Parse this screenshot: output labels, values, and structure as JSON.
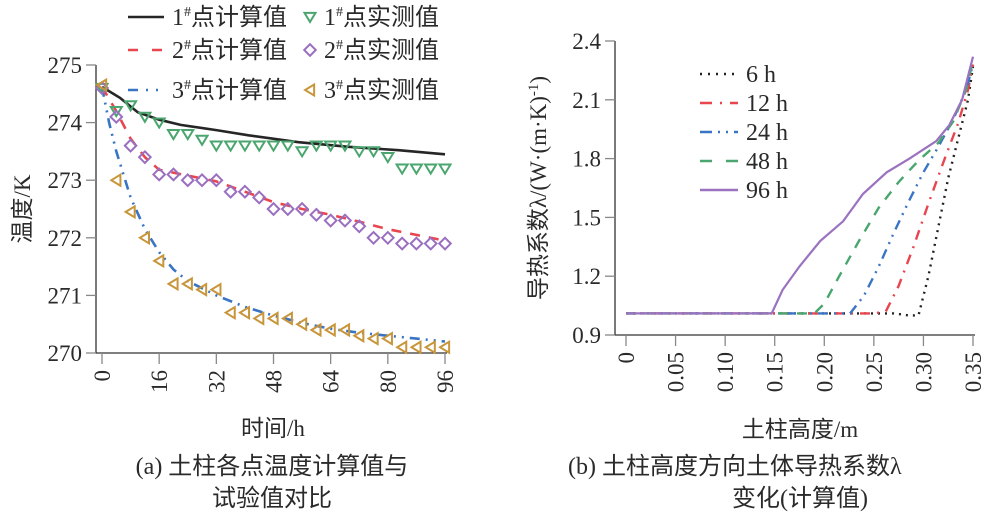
{
  "chart_data": [
    {
      "type": "line",
      "panel": "a",
      "caption_line1": "(a) 土柱各点温度计算值与",
      "caption_line2": "试验值对比",
      "xlabel": "时间/h",
      "ylabel": "温度/K",
      "xlim": [
        0,
        96
      ],
      "ylim": [
        270,
        275
      ],
      "xticks": [
        0,
        16,
        32,
        48,
        64,
        80,
        96
      ],
      "yticks": [
        270,
        271,
        272,
        273,
        274,
        275
      ],
      "grid": false,
      "legend_position": "top",
      "series": [
        {
          "name": "1#点计算值",
          "label_num": "1",
          "label_sup": "#",
          "label_text": "点计算值",
          "kind": "line",
          "style": "solid",
          "color": "#262626",
          "x": [
            0,
            5,
            10,
            16,
            22,
            32,
            41,
            55,
            69,
            83,
            96
          ],
          "y": [
            274.62,
            274.43,
            274.18,
            274.05,
            273.96,
            273.87,
            273.78,
            273.66,
            273.58,
            273.52,
            273.45
          ]
        },
        {
          "name": "2#点计算值",
          "label_num": "2",
          "label_sup": "#",
          "label_text": "点计算值",
          "kind": "line",
          "style": "dashed",
          "color": "#e8454f",
          "x": [
            0,
            4,
            8,
            12,
            16,
            24,
            32,
            40,
            48,
            56,
            64,
            72,
            80,
            88,
            96
          ],
          "y": [
            274.62,
            274.2,
            273.72,
            273.4,
            273.18,
            273.08,
            272.98,
            272.8,
            272.62,
            272.5,
            272.4,
            272.28,
            272.15,
            272.05,
            271.95
          ]
        },
        {
          "name": "3#点计算值",
          "label_num": "3",
          "label_sup": "#",
          "label_text": "点计算值",
          "kind": "line",
          "style": "dashdotdot",
          "color": "#3a74c4",
          "x": [
            0,
            2,
            4,
            8,
            12,
            16,
            20,
            24,
            32,
            40,
            48,
            56,
            64,
            72,
            80,
            88,
            96
          ],
          "y": [
            274.62,
            274.0,
            273.5,
            272.7,
            272.15,
            271.75,
            271.45,
            271.25,
            271.0,
            270.8,
            270.65,
            270.52,
            270.42,
            270.35,
            270.3,
            270.25,
            270.2
          ]
        },
        {
          "name": "1#点实测值",
          "label_num": "1",
          "label_sup": "#",
          "label_text": "点实测值",
          "kind": "scatter",
          "marker": "triangle-down",
          "color": "#4aa66e",
          "x": [
            0,
            4,
            8,
            12,
            16,
            20,
            24,
            28,
            32,
            36,
            40,
            44,
            48,
            52,
            56,
            60,
            64,
            68,
            72,
            76,
            80,
            84,
            88,
            92,
            96
          ],
          "y": [
            274.6,
            274.2,
            274.3,
            274.1,
            274.0,
            273.8,
            273.8,
            273.7,
            273.6,
            273.6,
            273.6,
            273.6,
            273.6,
            273.6,
            273.5,
            273.6,
            273.6,
            273.6,
            273.5,
            273.5,
            273.4,
            273.2,
            273.2,
            273.2,
            273.2
          ]
        },
        {
          "name": "2#点实测值",
          "label_num": "2",
          "label_sup": "#",
          "label_text": "点实测值",
          "kind": "scatter",
          "marker": "diamond",
          "color": "#9a6fc0",
          "x": [
            0,
            4,
            8,
            12,
            16,
            20,
            24,
            28,
            32,
            36,
            40,
            44,
            48,
            52,
            56,
            60,
            64,
            68,
            72,
            76,
            80,
            84,
            88,
            92,
            96
          ],
          "y": [
            274.6,
            274.1,
            273.6,
            273.4,
            273.1,
            273.1,
            273.0,
            273.0,
            273.0,
            272.8,
            272.8,
            272.7,
            272.5,
            272.5,
            272.5,
            272.4,
            272.3,
            272.3,
            272.2,
            272.0,
            272.0,
            271.9,
            271.9,
            271.9,
            271.9
          ]
        },
        {
          "name": "3#点实测值",
          "label_num": "3",
          "label_sup": "#",
          "label_text": "点实测值",
          "kind": "scatter",
          "marker": "triangle-left",
          "color": "#c8963a",
          "x": [
            0,
            4,
            8,
            12,
            16,
            20,
            24,
            28,
            32,
            36,
            40,
            44,
            48,
            52,
            56,
            60,
            64,
            68,
            72,
            76,
            80,
            84,
            88,
            92,
            96
          ],
          "y": [
            274.65,
            273.0,
            272.45,
            272.0,
            271.6,
            271.2,
            271.2,
            271.1,
            271.1,
            270.7,
            270.7,
            270.6,
            270.6,
            270.6,
            270.5,
            270.4,
            270.4,
            270.4,
            270.3,
            270.25,
            270.25,
            270.1,
            270.1,
            270.1,
            270.1
          ]
        }
      ]
    },
    {
      "type": "line",
      "panel": "b",
      "caption_line1": "(b) 土柱高度方向土体导热系数λ",
      "caption_line2": "变化(计算值)",
      "xlabel": "土柱高度/m",
      "ylabel": "导热系数λ/(W·(m·K)⁻¹)",
      "ylabel_main": "导热系数λ/(W·(m·K)",
      "ylabel_sup": "-1",
      "ylabel_end": ")",
      "xlim": [
        0,
        0.35
      ],
      "ylim": [
        0.9,
        2.4
      ],
      "xticks": [
        "0",
        "0.05",
        "0.10",
        "0.15",
        "0.20",
        "0.25",
        "0.30",
        "0.35"
      ],
      "xtick_values": [
        0,
        0.05,
        0.1,
        0.15,
        0.2,
        0.25,
        0.3,
        0.35
      ],
      "yticks": [
        "0.9",
        "1.2",
        "1.5",
        "1.8",
        "2.1",
        "2.4"
      ],
      "ytick_values": [
        0.9,
        1.2,
        1.5,
        1.8,
        2.1,
        2.4
      ],
      "grid": false,
      "legend_position": "top-left",
      "series": [
        {
          "name": "6 h",
          "style": "dotted",
          "color": "#222222",
          "x": [
            0,
            0.27,
            0.285,
            0.295,
            0.305,
            0.315,
            0.325,
            0.335,
            0.345,
            0.35
          ],
          "y": [
            1.01,
            1.01,
            1.0,
            1.0,
            1.2,
            1.45,
            1.7,
            1.9,
            2.1,
            2.27
          ]
        },
        {
          "name": "12 h",
          "style": "dashdot",
          "color": "#e8454f",
          "x": [
            0,
            0.25,
            0.262,
            0.275,
            0.29,
            0.305,
            0.32,
            0.335,
            0.345,
            0.35
          ],
          "y": [
            1.01,
            1.01,
            1.02,
            1.15,
            1.35,
            1.57,
            1.78,
            1.98,
            2.15,
            2.28
          ]
        },
        {
          "name": "24 h",
          "style": "dashdotdot",
          "color": "#3a74c4",
          "x": [
            0,
            0.226,
            0.24,
            0.255,
            0.27,
            0.285,
            0.3,
            0.315,
            0.33,
            0.343,
            0.35
          ],
          "y": [
            1.01,
            1.01,
            1.1,
            1.25,
            1.42,
            1.58,
            1.73,
            1.86,
            2.0,
            2.15,
            2.28
          ]
        },
        {
          "name": "48 h",
          "style": "dashed",
          "color": "#4aa66e",
          "x": [
            0,
            0.19,
            0.2,
            0.215,
            0.235,
            0.255,
            0.275,
            0.295,
            0.315,
            0.33,
            0.343,
            0.35
          ],
          "y": [
            1.01,
            1.01,
            1.06,
            1.2,
            1.38,
            1.55,
            1.68,
            1.79,
            1.88,
            1.99,
            2.15,
            2.3
          ]
        },
        {
          "name": "96 h",
          "style": "solid",
          "color": "#9a72bf",
          "x": [
            0,
            0.147,
            0.158,
            0.175,
            0.196,
            0.219,
            0.239,
            0.263,
            0.286,
            0.313,
            0.326,
            0.339,
            0.35
          ],
          "y": [
            1.01,
            1.01,
            1.13,
            1.25,
            1.38,
            1.48,
            1.62,
            1.73,
            1.8,
            1.89,
            1.97,
            2.1,
            2.32
          ]
        }
      ]
    }
  ]
}
